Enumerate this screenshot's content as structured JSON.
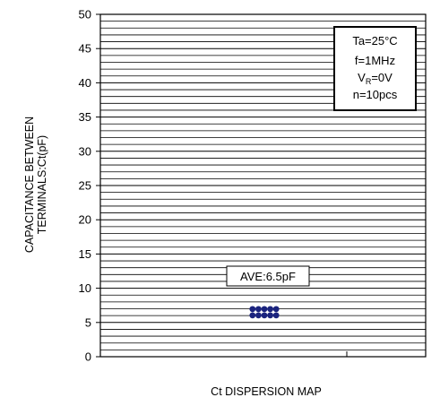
{
  "chart_data": {
    "type": "scatter",
    "title": "",
    "xlabel": "Ct DISPERSION MAP",
    "ylabel_lines": [
      "CAPACITANCE BETWEEN",
      "TERMINALS:Ct(pF)"
    ],
    "ylim": [
      0,
      50
    ],
    "yticks": [
      0,
      5,
      10,
      15,
      20,
      25,
      30,
      35,
      40,
      45,
      50
    ],
    "y_minor_step": 1,
    "grid": true,
    "x": [
      1,
      1,
      1,
      1,
      1,
      1,
      1,
      1,
      1,
      1
    ],
    "y": [
      6.5,
      6.5,
      6.5,
      6.5,
      6.5,
      6.5,
      6.5,
      6.5,
      6.5,
      6.5
    ],
    "marker_color": "#1a237e",
    "average_label": "AVE:6.5pF",
    "conditions": {
      "temperature": "Ta=25°C",
      "frequency": "f=1MHz",
      "voltage_prefix": "V",
      "voltage_subscript": "R",
      "voltage_suffix": "=0V",
      "count": "n=10pcs"
    }
  }
}
